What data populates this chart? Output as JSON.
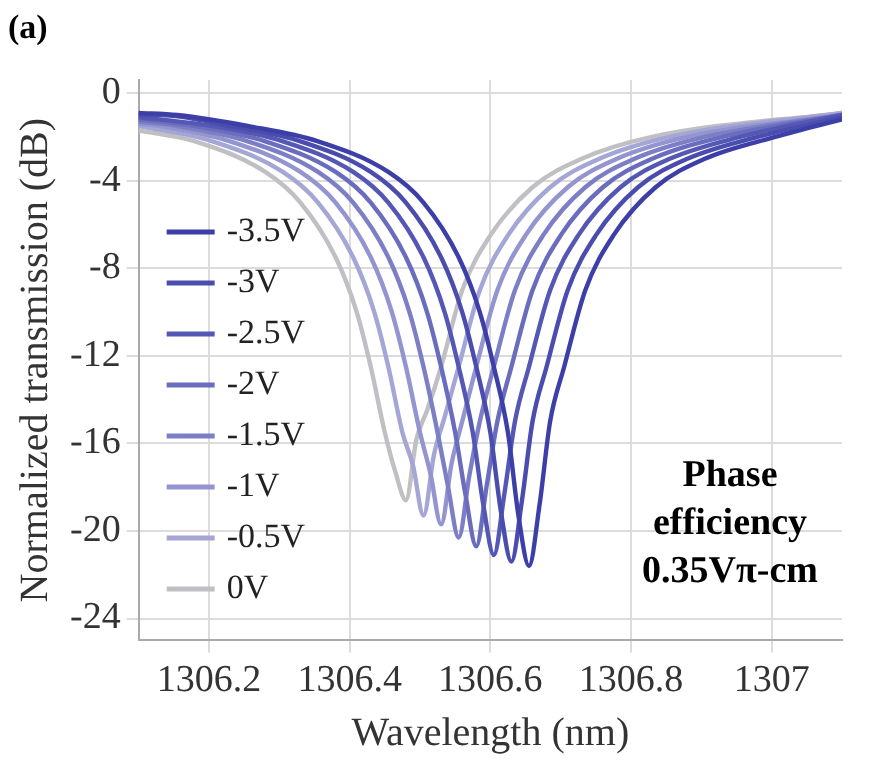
{
  "chart_data": {
    "type": "line",
    "xlabel": "Wavelength (nm)",
    "ylabel": "Normalized transmission (dB)",
    "xlim": [
      1306.1,
      1307.1
    ],
    "xticks": [
      1306.2,
      1306.4,
      1306.6,
      1306.8,
      1307
    ],
    "ylim": [
      -25,
      0.6
    ],
    "yticks": [
      -24,
      -20,
      -16,
      -12,
      -8,
      -4,
      0
    ],
    "grid": true,
    "legend": "left",
    "marker": "none",
    "line_style": "solid",
    "annotations": [
      "(a)",
      "Phase efficiency 0.35Vπ-cm"
    ],
    "series": [
      {
        "name": "-3.5V",
        "color": "#3d3fa8",
        "x": [
          1306.1,
          1306.155,
          1306.255,
          1306.355,
          1306.455,
          1306.505,
          1306.555,
          1306.585,
          1306.605,
          1306.625,
          1306.64,
          1306.655,
          1306.67,
          1306.685,
          1306.705,
          1306.735,
          1306.775,
          1306.835,
          1306.905,
          1307.005,
          1307.1
        ],
        "values": [
          -0.9,
          -1.0,
          -1.5,
          -2.2,
          -3.6,
          -5.0,
          -7.5,
          -10,
          -12.5,
          -15.5,
          -19.3,
          -21.6,
          -18.8,
          -15,
          -12.5,
          -9,
          -6.5,
          -4.3,
          -3.0,
          -2.0,
          -1.2
        ]
      },
      {
        "name": "-3V",
        "color": "#4a4cae",
        "x": [
          1306.1,
          1306.13,
          1306.23,
          1306.33,
          1306.43,
          1306.48,
          1306.53,
          1306.56,
          1306.58,
          1306.6,
          1306.615,
          1306.63,
          1306.645,
          1306.66,
          1306.68,
          1306.71,
          1306.75,
          1306.81,
          1306.88,
          1306.98,
          1307.1
        ],
        "values": [
          -1.0,
          -1.0,
          -1.5,
          -2.2,
          -3.6,
          -5.0,
          -7.5,
          -10,
          -12.5,
          -15.5,
          -19.1,
          -21.4,
          -18.6,
          -15,
          -12.5,
          -9,
          -6.5,
          -4.3,
          -3.0,
          -2.0,
          -1.1
        ]
      },
      {
        "name": "-2.5V",
        "color": "#5557b4",
        "x": [
          1306.1,
          1306.205,
          1306.305,
          1306.405,
          1306.455,
          1306.505,
          1306.535,
          1306.555,
          1306.575,
          1306.59,
          1306.605,
          1306.62,
          1306.635,
          1306.655,
          1306.685,
          1306.725,
          1306.785,
          1306.855,
          1306.955,
          1307.1
        ],
        "values": [
          -1.1,
          -1.5,
          -2.2,
          -3.6,
          -5.0,
          -7.5,
          -10,
          -12.5,
          -15.5,
          -18.8,
          -21.1,
          -18.3,
          -15,
          -12.5,
          -9,
          -6.5,
          -4.3,
          -3.0,
          -2.0,
          -1.0
        ]
      },
      {
        "name": "-2V",
        "color": "#6a6cbe",
        "x": [
          1306.1,
          1306.18,
          1306.28,
          1306.38,
          1306.43,
          1306.48,
          1306.51,
          1306.53,
          1306.55,
          1306.565,
          1306.58,
          1306.595,
          1306.61,
          1306.63,
          1306.66,
          1306.7,
          1306.76,
          1306.83,
          1306.93,
          1307.1
        ],
        "values": [
          -1.2,
          -1.5,
          -2.2,
          -3.6,
          -5.0,
          -7.5,
          -10,
          -12.5,
          -15.5,
          -18.4,
          -20.7,
          -17.9,
          -15,
          -12.5,
          -9,
          -6.5,
          -4.3,
          -3.0,
          -2.0,
          -1.0
        ]
      },
      {
        "name": "-1.5V",
        "color": "#7c7ec6",
        "x": [
          1306.1,
          1306.155,
          1306.255,
          1306.355,
          1306.405,
          1306.455,
          1306.485,
          1306.505,
          1306.525,
          1306.54,
          1306.555,
          1306.57,
          1306.585,
          1306.605,
          1306.635,
          1306.675,
          1306.735,
          1306.805,
          1306.905,
          1307.1
        ],
        "values": [
          -1.3,
          -1.5,
          -2.2,
          -3.6,
          -5.0,
          -7.5,
          -10,
          -12.5,
          -15.5,
          -18.0,
          -20.3,
          -17.5,
          -15,
          -12.5,
          -9,
          -6.5,
          -4.3,
          -3.0,
          -2.0,
          -1.0
        ]
      },
      {
        "name": "-1V",
        "color": "#9394d0",
        "x": [
          1306.1,
          1306.13,
          1306.23,
          1306.33,
          1306.38,
          1306.43,
          1306.46,
          1306.48,
          1306.5,
          1306.515,
          1306.53,
          1306.545,
          1306.56,
          1306.58,
          1306.61,
          1306.65,
          1306.71,
          1306.78,
          1306.88,
          1307.1
        ],
        "values": [
          -1.4,
          -1.5,
          -2.2,
          -3.6,
          -5.0,
          -7.5,
          -10,
          -12.5,
          -15.5,
          -17.4,
          -19.7,
          -16.9,
          -15,
          -12.5,
          -9,
          -6.5,
          -4.3,
          -3.0,
          -2.0,
          -1.0
        ]
      },
      {
        "name": "-0.5V",
        "color": "#a4a6d6",
        "x": [
          1306.1,
          1306.205,
          1306.305,
          1306.355,
          1306.405,
          1306.435,
          1306.455,
          1306.475,
          1306.49,
          1306.505,
          1306.52,
          1306.535,
          1306.555,
          1306.585,
          1306.625,
          1306.685,
          1306.755,
          1306.855,
          1307.1
        ],
        "values": [
          -1.5,
          -2.2,
          -3.6,
          -5.0,
          -7.5,
          -10,
          -12.5,
          -15.5,
          -17.0,
          -19.3,
          -16.5,
          -14.8,
          -12.5,
          -9,
          -6.5,
          -4.3,
          -3.0,
          -2.0,
          -0.9
        ]
      },
      {
        "name": "0V",
        "color": "#c0c0c4",
        "x": [
          1306.1,
          1306.18,
          1306.28,
          1306.33,
          1306.38,
          1306.41,
          1306.43,
          1306.45,
          1306.465,
          1306.48,
          1306.495,
          1306.51,
          1306.53,
          1306.56,
          1306.6,
          1306.66,
          1306.73,
          1306.83,
          1307.1
        ],
        "values": [
          -1.7,
          -2.2,
          -3.6,
          -5.0,
          -7.5,
          -10,
          -12.5,
          -15.5,
          -17.3,
          -18.6,
          -15.8,
          -14.5,
          -12.5,
          -9,
          -6.5,
          -4.3,
          -3.0,
          -2.0,
          -0.9
        ]
      }
    ]
  }
}
